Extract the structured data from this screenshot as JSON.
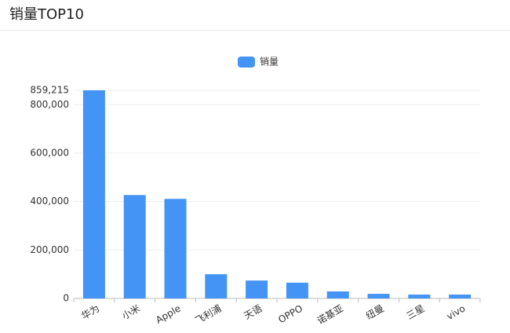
{
  "header": {
    "title": "销量TOP10"
  },
  "chart_data": {
    "type": "bar",
    "categories": [
      "华为",
      "小米",
      "Apple",
      "飞利浦",
      "天语",
      "OPPO",
      "诺基亚",
      "纽曼",
      "三星",
      "vivo"
    ],
    "series": [
      {
        "name": "销量",
        "color": "#4394f5",
        "values": [
          859215,
          427000,
          411000,
          100000,
          74000,
          65000,
          29000,
          19000,
          16000,
          16000
        ]
      }
    ],
    "ylim": [
      0,
      859215
    ],
    "yticks": [
      0,
      {
        "value": 200000,
        "label": "200,000"
      },
      {
        "value": 400000,
        "label": "400,000"
      },
      {
        "value": 600000,
        "label": "600,000"
      },
      {
        "value": 800000,
        "label": "800,000"
      },
      {
        "value": 859215,
        "label": "859,215"
      }
    ],
    "grid": true,
    "legend": "top"
  }
}
